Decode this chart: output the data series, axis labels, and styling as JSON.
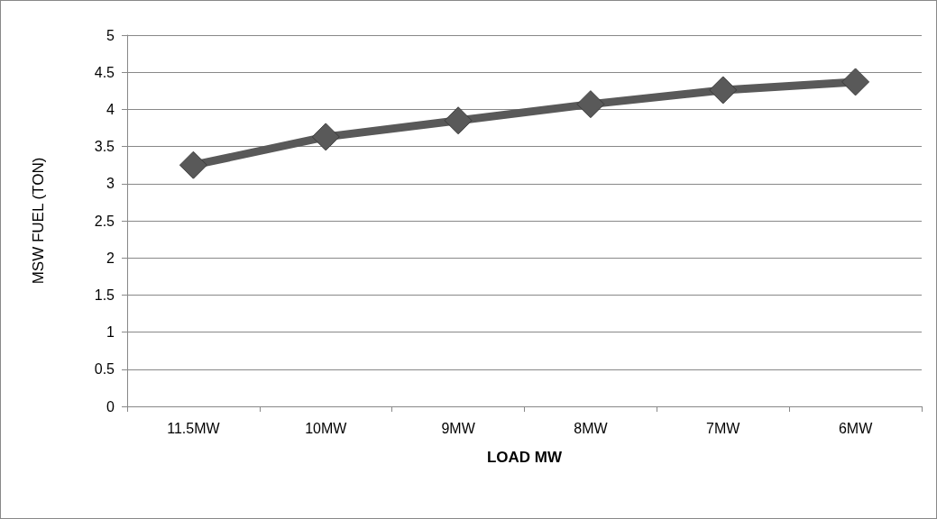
{
  "chart_data": {
    "type": "line",
    "xlabel": "LOAD MW",
    "ylabel": "MSW FUEL (TON)",
    "categories": [
      "11.5MW",
      "10MW",
      "9MW",
      "8MW",
      "7MW",
      "6MW"
    ],
    "series": [
      {
        "color": "#595959",
        "values": [
          3.25,
          3.63,
          3.85,
          4.07,
          4.26,
          4.37
        ]
      }
    ],
    "ylim": [
      0,
      5
    ],
    "yticks": [
      0,
      0.5,
      1,
      1.5,
      2,
      2.5,
      3,
      3.5,
      4,
      4.5,
      5
    ],
    "grid": "y",
    "marker": "diamond",
    "line_style": "solid"
  }
}
